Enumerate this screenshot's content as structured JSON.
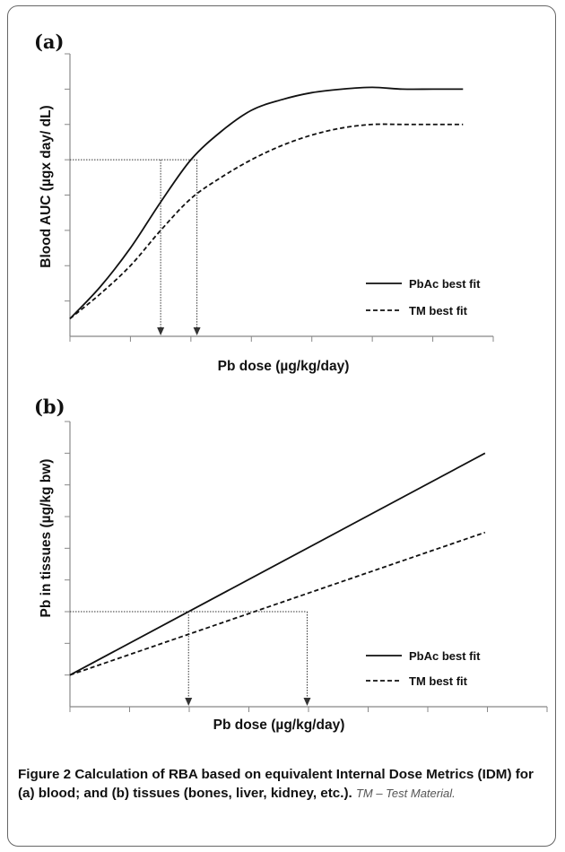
{
  "chart_data": [
    {
      "panel": "(a)",
      "type": "line",
      "xlabel": "Pb dose (µg/kg/day)",
      "ylabel": "Blood AUC (µgx day/ dL)",
      "grid": false,
      "legend": "bottom-right",
      "x": [
        0,
        0.5,
        1,
        1.5,
        2,
        2.5,
        3,
        3.5,
        4,
        4.5,
        5,
        5.5,
        6,
        6.5
      ],
      "series": [
        {
          "name": "PbAc best fit",
          "style": "solid",
          "values": [
            0.5,
            1.4,
            2.5,
            3.8,
            5.0,
            5.8,
            6.4,
            6.7,
            6.9,
            7.0,
            7.05,
            7.0,
            7.0,
            7.0
          ]
        },
        {
          "name": "TM best fit",
          "style": "dashed",
          "values": [
            0.5,
            1.2,
            2.0,
            3.0,
            3.9,
            4.5,
            5.0,
            5.4,
            5.7,
            5.9,
            6.0,
            6.0,
            6.0,
            6.0
          ]
        }
      ],
      "reference_y": 5.0,
      "reference_x": [
        1.5,
        2.1
      ]
    },
    {
      "panel": "(b)",
      "type": "line",
      "xlabel": "Pb dose (µg/kg/day)",
      "ylabel": "Pb in tissues  (µg/kg bw)",
      "grid": false,
      "legend": "bottom-right",
      "x": [
        0,
        7
      ],
      "series": [
        {
          "name": "PbAc best fit",
          "style": "solid",
          "values": [
            1.0,
            8.0
          ]
        },
        {
          "name": "TM best fit",
          "style": "dashed",
          "values": [
            1.0,
            5.5
          ]
        }
      ],
      "reference_y": 3.0,
      "reference_x": [
        2.0,
        4.0
      ]
    }
  ],
  "caption": {
    "label": "Figure 2",
    "title": "Calculation of RBA based on equivalent Internal Dose Metrics (IDM) for (a) blood; and (b) tissues (bones, liver, kidney, etc.).",
    "note": "TM – Test Material."
  }
}
